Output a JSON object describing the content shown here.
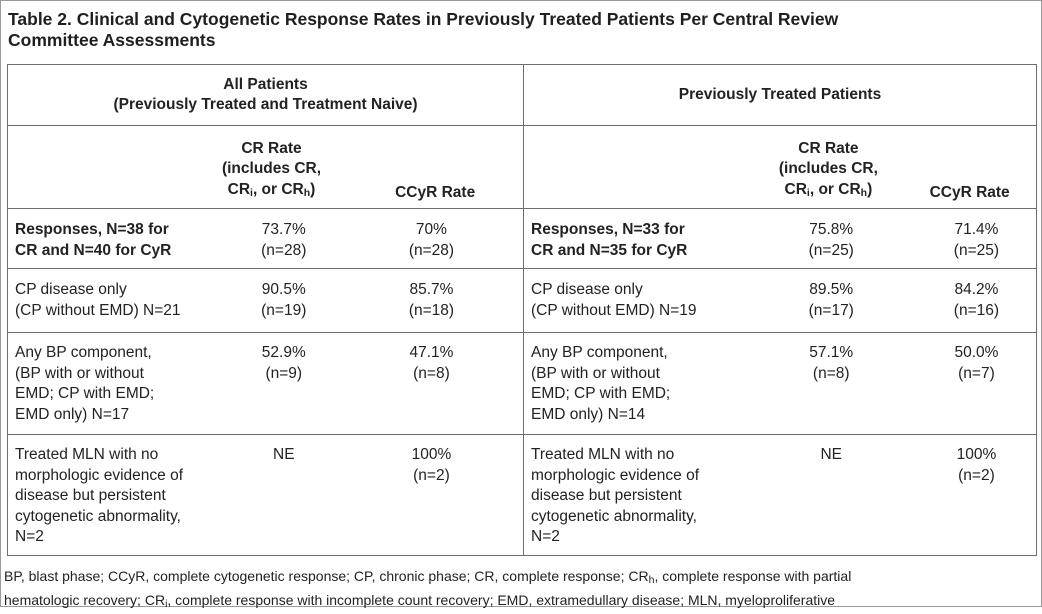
{
  "caption": {
    "line1": "Table 2. Clinical and Cytogenetic Response Rates in Previously Treated Patients Per Central Review",
    "line2": "Committee Assessments"
  },
  "groups": {
    "all": {
      "line1": "All Patients",
      "line2": "(Previously Treated and Treatment Naive)"
    },
    "prev": {
      "line1": "Previously Treated Patients"
    }
  },
  "col_headers": {
    "cr_line1": "CR Rate",
    "cr_line2": "(includes CR,",
    "cr_line3_a": "CR",
    "cr_line3_sub_i": "i",
    "cr_line3_b": ", or CR",
    "cr_line3_sub_h": "h",
    "cr_line3_c": ")",
    "ccyr": "CCyR Rate"
  },
  "rows": [
    {
      "all_label": [
        "Responses, N=38 for",
        "CR and N=40 for CyR"
      ],
      "all_cr": [
        "73.7%",
        "(n=28)"
      ],
      "all_ccyr": [
        "70%",
        "(n=28)"
      ],
      "prev_label": [
        "Responses, N=33 for",
        "CR and N=35 for CyR"
      ],
      "prev_cr": [
        "75.8%",
        "(n=25)"
      ],
      "prev_ccyr": [
        "71.4%",
        "(n=25)"
      ]
    },
    {
      "all_label": [
        "CP disease only",
        "(CP without EMD) N=21"
      ],
      "all_cr": [
        "90.5%",
        "(n=19)"
      ],
      "all_ccyr": [
        "85.7%",
        "(n=18)"
      ],
      "prev_label": [
        "CP disease only",
        "(CP without EMD) N=19"
      ],
      "prev_cr": [
        "89.5%",
        "(n=17)"
      ],
      "prev_ccyr": [
        "84.2%",
        "(n=16)"
      ]
    },
    {
      "all_label": [
        "Any BP component,",
        "(BP with or without",
        "EMD; CP with EMD;",
        "EMD only) N=17"
      ],
      "all_cr": [
        "52.9%",
        "(n=9)"
      ],
      "all_ccyr": [
        "47.1%",
        "(n=8)"
      ],
      "prev_label": [
        "Any BP component,",
        "(BP with or without",
        "EMD; CP with EMD;",
        "EMD only) N=14"
      ],
      "prev_cr": [
        "57.1%",
        "(n=8)"
      ],
      "prev_ccyr": [
        "50.0%",
        "(n=7)"
      ]
    },
    {
      "all_label": [
        "Treated MLN with no",
        "morphologic evidence of",
        "disease but persistent",
        "cytogenetic abnormality,",
        "N=2"
      ],
      "all_cr": [
        "NE"
      ],
      "all_ccyr": [
        "100%",
        "(n=2)"
      ],
      "prev_label": [
        "Treated MLN with no",
        "morphologic evidence of",
        "disease but persistent",
        "cytogenetic abnormality,",
        "N=2"
      ],
      "prev_cr": [
        "NE"
      ],
      "prev_ccyr": [
        "100%",
        "(n=2)"
      ]
    }
  ],
  "footnote": {
    "line1_a": "BP, blast phase; CCyR, complete cytogenetic response; CP, chronic phase; CR, complete response; CR",
    "line1_sub": "h",
    "line1_b": ", complete response with partial",
    "line2_a": "hematologic recovery; CR",
    "line2_sub": "i",
    "line2_b": ", complete response with incomplete count recovery; EMD, extramedullary disease; MLN, myeloproliferative"
  }
}
